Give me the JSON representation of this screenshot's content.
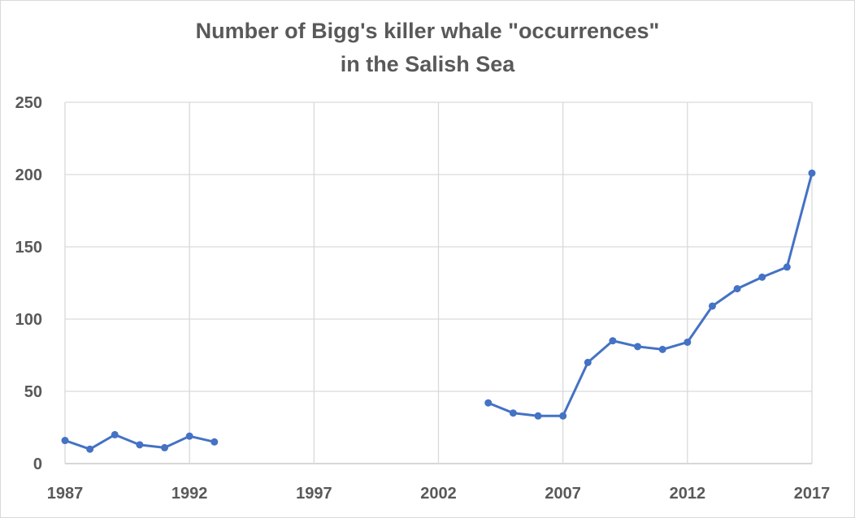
{
  "chart_data": {
    "type": "line",
    "title_lines": [
      "Number of Bigg's killer whale \"occurrences\"",
      "in the Salish Sea"
    ],
    "xlabel": "",
    "ylabel": "",
    "xlim": [
      1987,
      2017
    ],
    "ylim": [
      0,
      250
    ],
    "x_ticks": [
      1987,
      1992,
      1997,
      2002,
      2007,
      2012,
      2017
    ],
    "y_ticks": [
      0,
      50,
      100,
      150,
      200,
      250
    ],
    "grid": true,
    "legend": "none",
    "series": [
      {
        "color": "#4472C4",
        "points": [
          [
            1987,
            16
          ],
          [
            1988,
            10
          ],
          [
            1989,
            20
          ],
          [
            1990,
            13
          ],
          [
            1991,
            11
          ],
          [
            1992,
            19
          ],
          [
            1993,
            15
          ],
          [
            1994,
            null
          ],
          [
            1995,
            null
          ],
          [
            1996,
            null
          ],
          [
            1997,
            null
          ],
          [
            1998,
            null
          ],
          [
            1999,
            null
          ],
          [
            2000,
            null
          ],
          [
            2001,
            null
          ],
          [
            2002,
            null
          ],
          [
            2003,
            null
          ],
          [
            2004,
            42
          ],
          [
            2005,
            35
          ],
          [
            2006,
            33
          ],
          [
            2007,
            33
          ],
          [
            2008,
            70
          ],
          [
            2009,
            85
          ],
          [
            2010,
            81
          ],
          [
            2011,
            79
          ],
          [
            2012,
            84
          ],
          [
            2013,
            109
          ],
          [
            2014,
            121
          ],
          [
            2015,
            129
          ],
          [
            2016,
            136
          ],
          [
            2017,
            201
          ]
        ]
      }
    ]
  }
}
